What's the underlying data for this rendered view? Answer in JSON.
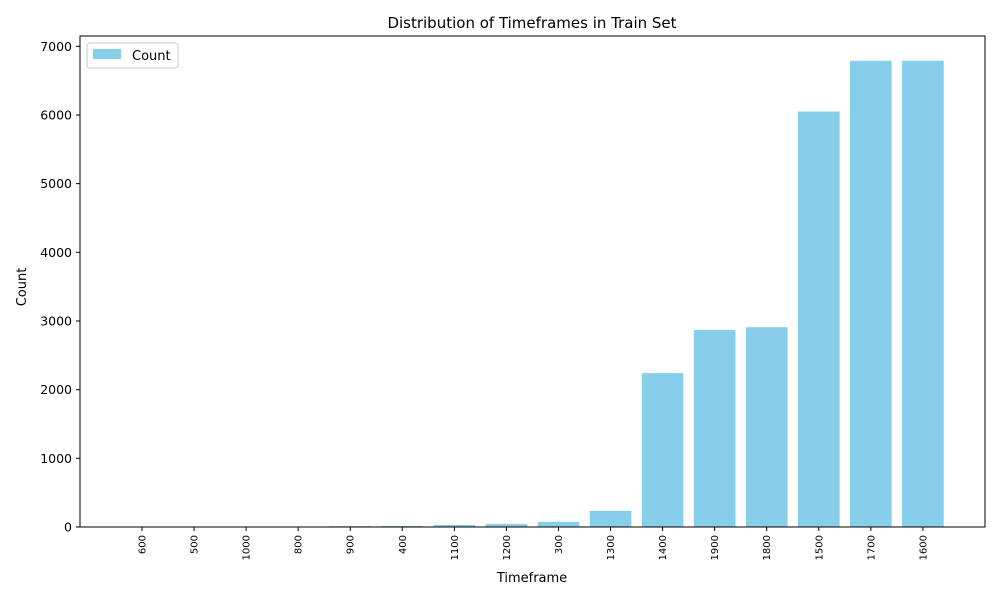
{
  "chart_data": {
    "type": "bar",
    "title": "Distribution of Timeframes in Train Set",
    "xlabel": "Timeframe",
    "ylabel": "Count",
    "categories": [
      "600",
      "500",
      "1000",
      "800",
      "900",
      "400",
      "1100",
      "1200",
      "300",
      "1300",
      "1400",
      "1900",
      "1800",
      "1500",
      "1700",
      "1600"
    ],
    "series": [
      {
        "name": "Count",
        "color": "#87ceeb",
        "values": [
          1,
          2,
          3,
          4,
          12,
          15,
          30,
          45,
          75,
          235,
          2240,
          2870,
          2910,
          6050,
          6790,
          6790
        ]
      }
    ],
    "ylim": [
      0,
      7150
    ],
    "yticks": [
      0,
      1000,
      2000,
      3000,
      4000,
      5000,
      6000,
      7000
    ],
    "legend_position": "top-left",
    "grid": false,
    "x_tick_rotation": "vertical"
  }
}
